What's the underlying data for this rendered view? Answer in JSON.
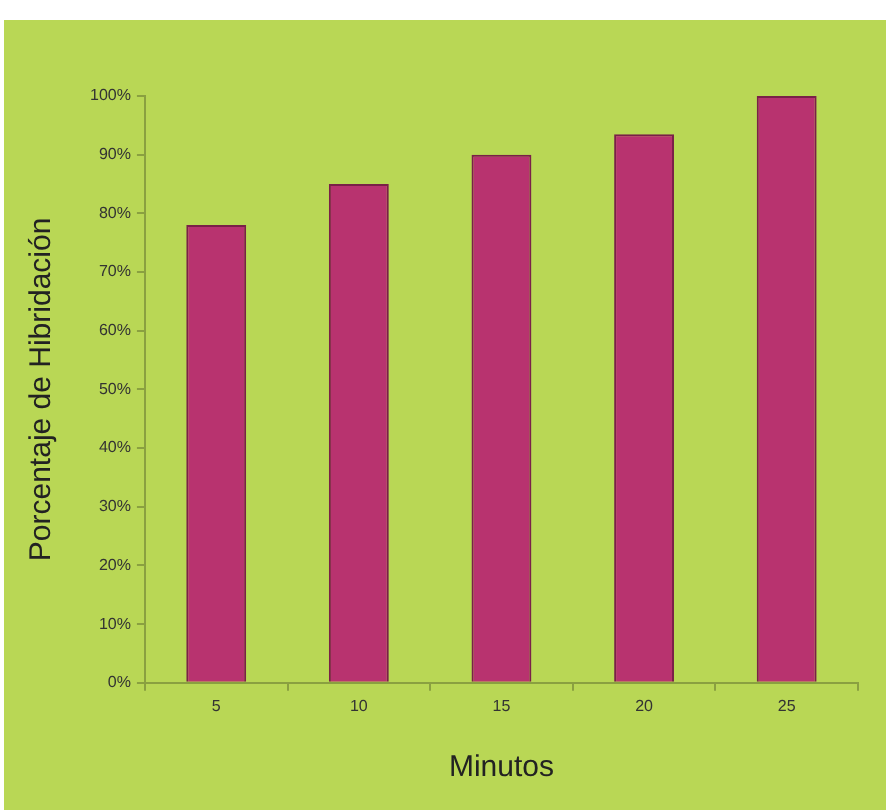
{
  "chart_data": {
    "type": "bar",
    "xlabel": "Minutos",
    "ylabel": "Porcentaje de Hibridación",
    "categories": [
      "5",
      "10",
      "15",
      "20",
      "25"
    ],
    "values": [
      78,
      85,
      90,
      93.5,
      100
    ],
    "color": "#b8336f",
    "ylim": [
      0,
      100
    ],
    "yticks": [
      {
        "value": 0,
        "label": "0%"
      },
      {
        "value": 10,
        "label": "10%"
      },
      {
        "value": 20,
        "label": "20%"
      },
      {
        "value": 30,
        "label": "30%"
      },
      {
        "value": 40,
        "label": "40%"
      },
      {
        "value": 50,
        "label": "50%"
      },
      {
        "value": 60,
        "label": "60%"
      },
      {
        "value": 70,
        "label": "70%"
      },
      {
        "value": 80,
        "label": "80%"
      },
      {
        "value": 90,
        "label": "90%"
      },
      {
        "value": 100,
        "label": "100%"
      }
    ],
    "grid": false,
    "legend": false
  }
}
